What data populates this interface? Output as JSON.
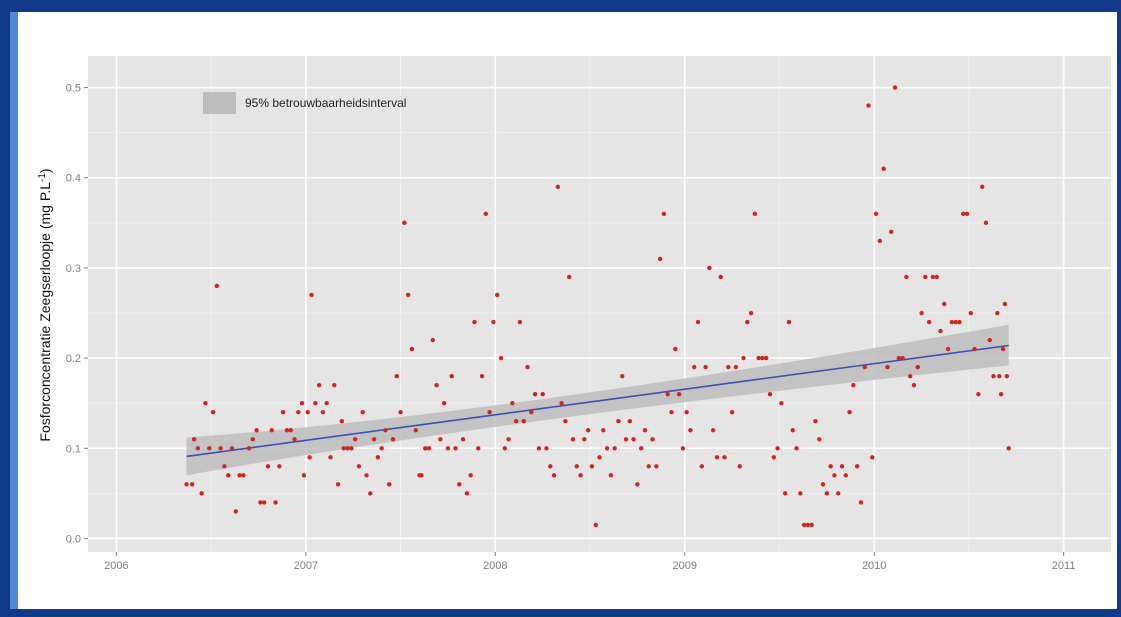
{
  "colors": {
    "frame_dark": "#123a8a",
    "frame_light": "#4f8ad0",
    "panel_bg": "#e5e5e5",
    "grid_major": "#ffffff",
    "grid_minor": "#f2f2f2",
    "point": "#d0261c",
    "trend_line": "#3f4fb0",
    "ci_band": "#bdbdbd",
    "axis_text": "#7f7f7f"
  },
  "chart_data": {
    "type": "scatter",
    "ylabel_main": "Fosforconcentratie Zeegserloopje (mg P.L",
    "ylabel_sup": "-1",
    "ylabel_close": ")",
    "xlim": [
      2005.85,
      2011.25
    ],
    "ylim": [
      -0.015,
      0.535
    ],
    "x_ticks": [
      2006,
      2007,
      2008,
      2009,
      2010,
      2011
    ],
    "x_tick_labels": [
      "2006",
      "2007",
      "2008",
      "2009",
      "2010",
      "2011"
    ],
    "y_ticks": [
      0.0,
      0.1,
      0.2,
      0.3,
      0.4,
      0.5
    ],
    "y_tick_labels": [
      "0.0",
      "0.1",
      "0.2",
      "0.3",
      "0.4",
      "0.5"
    ],
    "grid": true,
    "legend": {
      "label": "95% betrouwbaarheidsinterval",
      "position": "top-left",
      "swatch_color": "#bdbdbd"
    },
    "trend": {
      "x_start": 2006.37,
      "y_start": 0.091,
      "x_end": 2010.71,
      "y_end": 0.214,
      "ci_start": [
        0.07,
        0.112
      ],
      "ci_mid": [
        0.128,
        0.14
      ],
      "ci_mid_x": 2008.0,
      "ci_end": [
        0.192,
        0.237
      ]
    },
    "points": [
      [
        2006.37,
        0.06
      ],
      [
        2006.4,
        0.06
      ],
      [
        2006.41,
        0.11
      ],
      [
        2006.43,
        0.1
      ],
      [
        2006.45,
        0.05
      ],
      [
        2006.47,
        0.15
      ],
      [
        2006.49,
        0.1
      ],
      [
        2006.51,
        0.14
      ],
      [
        2006.53,
        0.28
      ],
      [
        2006.55,
        0.1
      ],
      [
        2006.57,
        0.08
      ],
      [
        2006.59,
        0.07
      ],
      [
        2006.61,
        0.1
      ],
      [
        2006.63,
        0.03
      ],
      [
        2006.65,
        0.07
      ],
      [
        2006.67,
        0.07
      ],
      [
        2006.7,
        0.1
      ],
      [
        2006.72,
        0.11
      ],
      [
        2006.74,
        0.12
      ],
      [
        2006.76,
        0.04
      ],
      [
        2006.78,
        0.04
      ],
      [
        2006.8,
        0.08
      ],
      [
        2006.82,
        0.12
      ],
      [
        2006.84,
        0.04
      ],
      [
        2006.86,
        0.08
      ],
      [
        2006.88,
        0.14
      ],
      [
        2006.9,
        0.12
      ],
      [
        2006.92,
        0.12
      ],
      [
        2006.94,
        0.11
      ],
      [
        2006.96,
        0.14
      ],
      [
        2006.98,
        0.15
      ],
      [
        2006.99,
        0.07
      ],
      [
        2007.01,
        0.14
      ],
      [
        2007.02,
        0.09
      ],
      [
        2007.03,
        0.27
      ],
      [
        2007.05,
        0.15
      ],
      [
        2007.07,
        0.17
      ],
      [
        2007.09,
        0.14
      ],
      [
        2007.11,
        0.15
      ],
      [
        2007.13,
        0.09
      ],
      [
        2007.15,
        0.17
      ],
      [
        2007.17,
        0.06
      ],
      [
        2007.19,
        0.13
      ],
      [
        2007.2,
        0.1
      ],
      [
        2007.22,
        0.1
      ],
      [
        2007.24,
        0.1
      ],
      [
        2007.26,
        0.11
      ],
      [
        2007.28,
        0.08
      ],
      [
        2007.3,
        0.14
      ],
      [
        2007.32,
        0.07
      ],
      [
        2007.34,
        0.05
      ],
      [
        2007.36,
        0.11
      ],
      [
        2007.38,
        0.09
      ],
      [
        2007.4,
        0.1
      ],
      [
        2007.42,
        0.12
      ],
      [
        2007.44,
        0.06
      ],
      [
        2007.46,
        0.11
      ],
      [
        2007.48,
        0.18
      ],
      [
        2007.5,
        0.14
      ],
      [
        2007.52,
        0.35
      ],
      [
        2007.54,
        0.27
      ],
      [
        2007.56,
        0.21
      ],
      [
        2007.58,
        0.12
      ],
      [
        2007.6,
        0.07
      ],
      [
        2007.61,
        0.07
      ],
      [
        2007.63,
        0.1
      ],
      [
        2007.65,
        0.1
      ],
      [
        2007.67,
        0.22
      ],
      [
        2007.69,
        0.17
      ],
      [
        2007.71,
        0.11
      ],
      [
        2007.73,
        0.15
      ],
      [
        2007.75,
        0.1
      ],
      [
        2007.77,
        0.18
      ],
      [
        2007.79,
        0.1
      ],
      [
        2007.81,
        0.06
      ],
      [
        2007.83,
        0.11
      ],
      [
        2007.85,
        0.05
      ],
      [
        2007.87,
        0.07
      ],
      [
        2007.89,
        0.24
      ],
      [
        2007.91,
        0.1
      ],
      [
        2007.93,
        0.18
      ],
      [
        2007.95,
        0.36
      ],
      [
        2007.97,
        0.14
      ],
      [
        2007.99,
        0.24
      ],
      [
        2008.01,
        0.27
      ],
      [
        2008.03,
        0.2
      ],
      [
        2008.05,
        0.1
      ],
      [
        2008.07,
        0.11
      ],
      [
        2008.09,
        0.15
      ],
      [
        2008.11,
        0.13
      ],
      [
        2008.13,
        0.24
      ],
      [
        2008.15,
        0.13
      ],
      [
        2008.17,
        0.19
      ],
      [
        2008.19,
        0.14
      ],
      [
        2008.21,
        0.16
      ],
      [
        2008.23,
        0.1
      ],
      [
        2008.25,
        0.16
      ],
      [
        2008.27,
        0.1
      ],
      [
        2008.29,
        0.08
      ],
      [
        2008.31,
        0.07
      ],
      [
        2008.33,
        0.39
      ],
      [
        2008.35,
        0.15
      ],
      [
        2008.37,
        0.13
      ],
      [
        2008.39,
        0.29
      ],
      [
        2008.41,
        0.11
      ],
      [
        2008.43,
        0.08
      ],
      [
        2008.45,
        0.07
      ],
      [
        2008.47,
        0.11
      ],
      [
        2008.49,
        0.12
      ],
      [
        2008.51,
        0.08
      ],
      [
        2008.53,
        0.015
      ],
      [
        2008.55,
        0.09
      ],
      [
        2008.57,
        0.12
      ],
      [
        2008.59,
        0.1
      ],
      [
        2008.61,
        0.07
      ],
      [
        2008.63,
        0.1
      ],
      [
        2008.65,
        0.13
      ],
      [
        2008.67,
        0.18
      ],
      [
        2008.69,
        0.11
      ],
      [
        2008.71,
        0.13
      ],
      [
        2008.73,
        0.11
      ],
      [
        2008.75,
        0.06
      ],
      [
        2008.77,
        0.1
      ],
      [
        2008.79,
        0.12
      ],
      [
        2008.81,
        0.08
      ],
      [
        2008.83,
        0.11
      ],
      [
        2008.85,
        0.08
      ],
      [
        2008.87,
        0.31
      ],
      [
        2008.89,
        0.36
      ],
      [
        2008.91,
        0.16
      ],
      [
        2008.93,
        0.14
      ],
      [
        2008.95,
        0.21
      ],
      [
        2008.97,
        0.16
      ],
      [
        2008.99,
        0.1
      ],
      [
        2009.01,
        0.14
      ],
      [
        2009.03,
        0.12
      ],
      [
        2009.05,
        0.19
      ],
      [
        2009.07,
        0.24
      ],
      [
        2009.09,
        0.08
      ],
      [
        2009.11,
        0.19
      ],
      [
        2009.13,
        0.3
      ],
      [
        2009.15,
        0.12
      ],
      [
        2009.17,
        0.09
      ],
      [
        2009.19,
        0.29
      ],
      [
        2009.21,
        0.09
      ],
      [
        2009.23,
        0.19
      ],
      [
        2009.25,
        0.14
      ],
      [
        2009.27,
        0.19
      ],
      [
        2009.29,
        0.08
      ],
      [
        2009.31,
        0.2
      ],
      [
        2009.33,
        0.24
      ],
      [
        2009.35,
        0.25
      ],
      [
        2009.37,
        0.36
      ],
      [
        2009.39,
        0.2
      ],
      [
        2009.41,
        0.2
      ],
      [
        2009.43,
        0.2
      ],
      [
        2009.45,
        0.16
      ],
      [
        2009.47,
        0.09
      ],
      [
        2009.49,
        0.1
      ],
      [
        2009.51,
        0.15
      ],
      [
        2009.53,
        0.05
      ],
      [
        2009.55,
        0.24
      ],
      [
        2009.57,
        0.12
      ],
      [
        2009.59,
        0.1
      ],
      [
        2009.61,
        0.05
      ],
      [
        2009.63,
        0.015
      ],
      [
        2009.65,
        0.015
      ],
      [
        2009.67,
        0.015
      ],
      [
        2009.69,
        0.13
      ],
      [
        2009.71,
        0.11
      ],
      [
        2009.73,
        0.06
      ],
      [
        2009.75,
        0.05
      ],
      [
        2009.77,
        0.08
      ],
      [
        2009.79,
        0.07
      ],
      [
        2009.81,
        0.05
      ],
      [
        2009.83,
        0.08
      ],
      [
        2009.85,
        0.07
      ],
      [
        2009.87,
        0.14
      ],
      [
        2009.89,
        0.17
      ],
      [
        2009.91,
        0.08
      ],
      [
        2009.93,
        0.04
      ],
      [
        2009.95,
        0.19
      ],
      [
        2009.97,
        0.48
      ],
      [
        2009.99,
        0.09
      ],
      [
        2010.01,
        0.36
      ],
      [
        2010.03,
        0.33
      ],
      [
        2010.05,
        0.41
      ],
      [
        2010.07,
        0.19
      ],
      [
        2010.09,
        0.34
      ],
      [
        2010.11,
        0.5
      ],
      [
        2010.13,
        0.2
      ],
      [
        2010.15,
        0.2
      ],
      [
        2010.17,
        0.29
      ],
      [
        2010.19,
        0.18
      ],
      [
        2010.21,
        0.17
      ],
      [
        2010.23,
        0.19
      ],
      [
        2010.25,
        0.25
      ],
      [
        2010.27,
        0.29
      ],
      [
        2010.29,
        0.24
      ],
      [
        2010.31,
        0.29
      ],
      [
        2010.33,
        0.29
      ],
      [
        2010.35,
        0.23
      ],
      [
        2010.37,
        0.26
      ],
      [
        2010.39,
        0.21
      ],
      [
        2010.41,
        0.24
      ],
      [
        2010.43,
        0.24
      ],
      [
        2010.45,
        0.24
      ],
      [
        2010.47,
        0.36
      ],
      [
        2010.49,
        0.36
      ],
      [
        2010.51,
        0.25
      ],
      [
        2010.53,
        0.21
      ],
      [
        2010.55,
        0.16
      ],
      [
        2010.57,
        0.39
      ],
      [
        2010.59,
        0.35
      ],
      [
        2010.61,
        0.22
      ],
      [
        2010.63,
        0.18
      ],
      [
        2010.65,
        0.25
      ],
      [
        2010.66,
        0.18
      ],
      [
        2010.67,
        0.16
      ],
      [
        2010.68,
        0.21
      ],
      [
        2010.69,
        0.26
      ],
      [
        2010.7,
        0.18
      ],
      [
        2010.71,
        0.1
      ]
    ]
  }
}
